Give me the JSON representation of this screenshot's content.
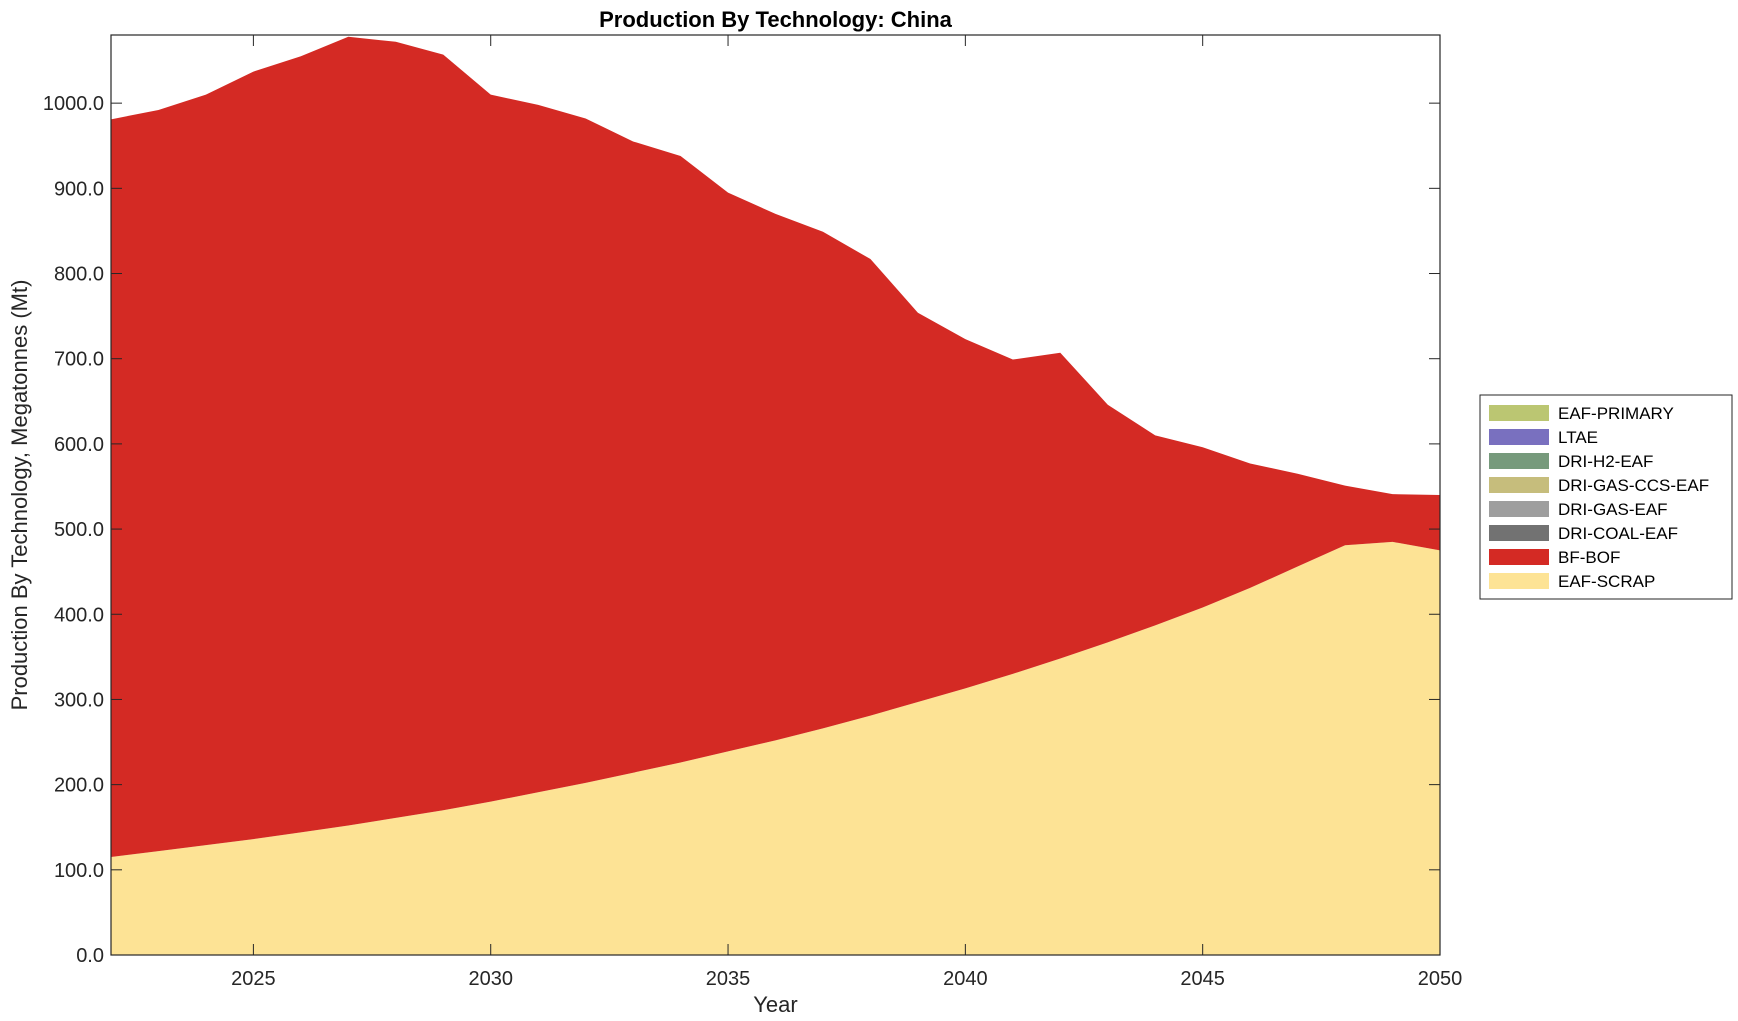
{
  "chart_data": {
    "type": "area",
    "stacked": true,
    "title": "Production By Technology: China",
    "xlabel": "Year",
    "ylabel": "Production By Technology, Megatonnes (Mt)",
    "xlim": [
      2022,
      2050
    ],
    "ylim": [
      0,
      1080
    ],
    "xticks": [
      2025,
      2030,
      2035,
      2040,
      2045,
      2050
    ],
    "xtick_labels": [
      "2025",
      "2030",
      "2035",
      "2040",
      "2045",
      "2050"
    ],
    "yticks": [
      0,
      100,
      200,
      300,
      400,
      500,
      600,
      700,
      800,
      900,
      1000
    ],
    "ytick_labels": [
      "0.0",
      "100.0",
      "200.0",
      "300.0",
      "400.0",
      "500.0",
      "600.0",
      "700.0",
      "800.0",
      "900.0",
      "1000.0"
    ],
    "grid": false,
    "legend_position": "outside-right",
    "x": [
      2022,
      2023,
      2024,
      2025,
      2026,
      2027,
      2028,
      2029,
      2030,
      2031,
      2032,
      2033,
      2034,
      2035,
      2036,
      2037,
      2038,
      2039,
      2040,
      2041,
      2042,
      2043,
      2044,
      2045,
      2046,
      2047,
      2048,
      2049,
      2050
    ],
    "series": [
      {
        "name": "EAF-SCRAP",
        "color": "#FDE395",
        "values": [
          115,
          122,
          129,
          136,
          144,
          152,
          161,
          170,
          180,
          191,
          202,
          214,
          226,
          239,
          252,
          266,
          281,
          297,
          313,
          330,
          348,
          367,
          387,
          408,
          431,
          456,
          481,
          485,
          475
        ]
      },
      {
        "name": "BF-BOF",
        "color": "#D42A24",
        "values": [
          866,
          870,
          881,
          901,
          911,
          926,
          911,
          887,
          830,
          807,
          780,
          741,
          712,
          656,
          618,
          583,
          536,
          457,
          410,
          369,
          359,
          279,
          223,
          188,
          146,
          109,
          70,
          56,
          65
        ]
      },
      {
        "name": "DRI-COAL-EAF",
        "color": "#727272",
        "values": [
          0,
          0,
          0,
          0,
          0,
          0,
          0,
          0,
          0,
          0,
          0,
          0,
          0,
          0,
          0,
          0,
          0,
          0,
          0,
          0,
          0,
          0,
          0,
          0,
          0,
          0,
          0,
          0,
          0
        ]
      },
      {
        "name": "DRI-GAS-EAF",
        "color": "#9E9E9E",
        "values": [
          0,
          0,
          0,
          0,
          0,
          0,
          0,
          0,
          0,
          0,
          0,
          0,
          0,
          0,
          0,
          0,
          0,
          0,
          0,
          0,
          0,
          0,
          0,
          0,
          0,
          0,
          0,
          0,
          0
        ]
      },
      {
        "name": "DRI-GAS-CCS-EAF",
        "color": "#C6BD7C",
        "values": [
          0,
          0,
          0,
          0,
          0,
          0,
          0,
          0,
          0,
          0,
          0,
          0,
          0,
          0,
          0,
          0,
          0,
          0,
          0,
          0,
          0,
          0,
          0,
          0,
          0,
          0,
          0,
          0,
          0
        ]
      },
      {
        "name": "DRI-H2-EAF",
        "color": "#779A7C",
        "values": [
          0,
          0,
          0,
          0,
          0,
          0,
          0,
          0,
          0,
          0,
          0,
          0,
          0,
          0,
          0,
          0,
          0,
          0,
          0,
          0,
          0,
          0,
          0,
          0,
          0,
          0,
          0,
          0,
          0
        ]
      },
      {
        "name": "LTAE",
        "color": "#7970BF",
        "values": [
          0,
          0,
          0,
          0,
          0,
          0,
          0,
          0,
          0,
          0,
          0,
          0,
          0,
          0,
          0,
          0,
          0,
          0,
          0,
          0,
          0,
          0,
          0,
          0,
          0,
          0,
          0,
          0,
          0
        ]
      },
      {
        "name": "EAF-PRIMARY",
        "color": "#BBC672",
        "values": [
          0,
          0,
          0,
          0,
          0,
          0,
          0,
          0,
          0,
          0,
          0,
          0,
          0,
          0,
          0,
          0,
          0,
          0,
          0,
          0,
          0,
          0,
          0,
          0,
          0,
          0,
          0,
          0,
          0
        ]
      }
    ],
    "legend_order": [
      "EAF-PRIMARY",
      "LTAE",
      "DRI-H2-EAF",
      "DRI-GAS-CCS-EAF",
      "DRI-GAS-EAF",
      "DRI-COAL-EAF",
      "BF-BOF",
      "EAF-SCRAP"
    ]
  }
}
